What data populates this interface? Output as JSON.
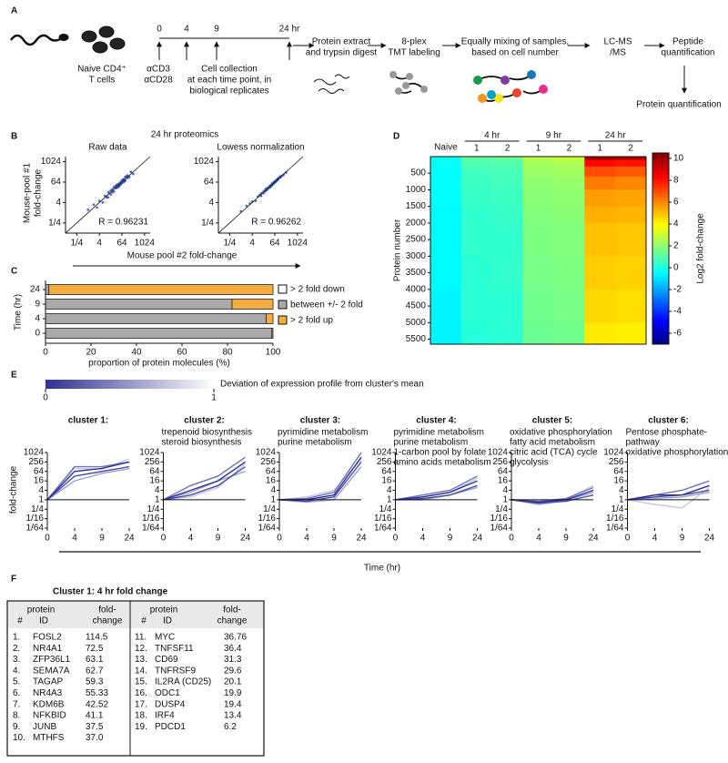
{
  "panels": [
    "A",
    "B",
    "C",
    "D",
    "E",
    "F"
  ],
  "workflow": {
    "cells": [
      "Naive CD4⁺",
      "T cells"
    ],
    "stimulus": [
      "αCD3",
      "αCD28"
    ],
    "timepoints": [
      "0",
      "4",
      "9",
      "24 hr"
    ],
    "collection": [
      "Cell collection",
      "at each time point, in",
      "biological replicates"
    ],
    "digest": [
      "Protein extract",
      "and trypsin digest"
    ],
    "labeling": [
      "8-plex",
      "TMT labeling"
    ],
    "mixing": [
      "Equally mixing of samples,",
      "based on cell number"
    ],
    "lcms": [
      "LC-MS",
      "/MS"
    ],
    "peptide": [
      "Peptide",
      "quantification"
    ],
    "protein": "Protein quantification"
  },
  "chart_data": [
    {
      "type": "scatter",
      "suptitle": "24 hr proteomics",
      "title": "Raw data",
      "annotation": "R = 0.96231",
      "ylabel": [
        "Mouse-pool #1",
        "fold-change"
      ],
      "xlabel": "Mouse pool #2 fold-change",
      "color": "#2b4ba8",
      "log_scale": true,
      "xlim": [
        0.0625,
        2048
      ],
      "ylim": [
        0.0625,
        2048
      ],
      "xticks": [
        {
          "value": 0.25,
          "label": "1/4"
        },
        4,
        64,
        1024
      ],
      "yticks": [
        {
          "value": 0.25,
          "label": "1/4"
        },
        4,
        64,
        1024
      ],
      "x": [
        1,
        2,
        3,
        4,
        6,
        8,
        10,
        12,
        12,
        16,
        16,
        20,
        20,
        24,
        24,
        28,
        32,
        32,
        36,
        40,
        40,
        44,
        48,
        48,
        56,
        56,
        64,
        64,
        72,
        80,
        80,
        88,
        96,
        96,
        112,
        128,
        128,
        160,
        192,
        256
      ],
      "y": [
        1.5,
        3,
        2,
        5,
        4,
        10,
        8,
        16,
        8,
        12,
        20,
        24,
        16,
        18,
        32,
        36,
        28,
        40,
        44,
        32,
        48,
        36,
        56,
        40,
        64,
        48,
        56,
        80,
        88,
        64,
        96,
        72,
        80,
        128,
        140,
        112,
        160,
        128,
        256,
        192
      ]
    },
    {
      "type": "scatter",
      "title": "Lowess normalization",
      "annotation": "R = 0.96262",
      "color": "#2b4ba8",
      "log_scale": true,
      "xlim": [
        0.0625,
        2048
      ],
      "ylim": [
        0.0625,
        2048
      ],
      "xticks": [
        {
          "value": 0.25,
          "label": "1/4"
        },
        4,
        64,
        1024
      ],
      "yticks": [
        {
          "value": 0.25,
          "label": "1/4"
        },
        4,
        64,
        1024
      ],
      "x": [
        1,
        2,
        3,
        4,
        6,
        8,
        10,
        12,
        12,
        16,
        16,
        20,
        20,
        24,
        24,
        28,
        32,
        32,
        36,
        40,
        40,
        44,
        48,
        48,
        56,
        56,
        64,
        64,
        72,
        80,
        80,
        88,
        96,
        96,
        112,
        128,
        128,
        160,
        192,
        256
      ],
      "y": [
        1.2,
        2.5,
        3.5,
        4.5,
        5,
        9,
        11,
        10,
        14,
        14,
        18,
        18,
        24,
        22,
        28,
        26,
        30,
        36,
        32,
        44,
        38,
        40,
        44,
        56,
        52,
        60,
        60,
        72,
        68,
        84,
        76,
        96,
        92,
        104,
        120,
        120,
        140,
        150,
        180,
        240
      ]
    },
    {
      "type": "stacked_bar",
      "orientation": "horizontal",
      "ylabel": "Time (hr)",
      "xlabel": "proportion of protein molecules (%)",
      "categories": [
        "24",
        "9",
        "4",
        "0"
      ],
      "xlim": [
        0,
        100
      ],
      "xticks": [
        0,
        20,
        40,
        60,
        80,
        100
      ],
      "series": [
        {
          "name": "> 2 fold down",
          "color": "#ffffff",
          "values": [
            0,
            0,
            0,
            0
          ]
        },
        {
          "name": "between +/- 2 fold",
          "color": "#a9a9a9",
          "values": [
            1.5,
            82,
            97,
            99.5
          ]
        },
        {
          "name": "> 2 fold up",
          "color": "#f5ae3d",
          "values": [
            98.5,
            18,
            3,
            0.5
          ]
        }
      ]
    },
    {
      "type": "heatmap",
      "ylabel": "Protein number",
      "clabel": "Log2 fold-change",
      "colormap": "jet",
      "groups": [
        {
          "label": "Naive",
          "replicates": [
            null
          ]
        },
        {
          "label": "4 hr",
          "replicates": [
            "1",
            "2"
          ]
        },
        {
          "label": "9 hr",
          "replicates": [
            "1",
            "2"
          ]
        },
        {
          "label": "24 hr",
          "replicates": [
            "1",
            "2"
          ]
        }
      ],
      "ylim": [
        0,
        5650
      ],
      "yticks": [
        500,
        1000,
        1500,
        2000,
        2500,
        3000,
        3500,
        4000,
        4500,
        5000,
        5500
      ],
      "row_edges": [
        0,
        100,
        300,
        600,
        1000,
        1500,
        2000,
        3000,
        4000,
        5000,
        5650
      ],
      "values": [
        [
          -0.3,
          -0.3,
          -0.4,
          -0.4,
          -0.4,
          -0.5,
          -0.5,
          -0.5,
          -0.6,
          -0.6
        ],
        [
          1.2,
          0.9,
          0.7,
          0.6,
          0.5,
          0.4,
          0.4,
          0.3,
          0.3,
          0.2
        ],
        [
          1.4,
          1.0,
          0.8,
          0.7,
          0.6,
          0.5,
          0.4,
          0.4,
          0.3,
          0.3
        ],
        [
          2.8,
          2.4,
          2.2,
          2.0,
          1.9,
          1.8,
          1.7,
          1.6,
          1.5,
          1.4
        ],
        [
          3.0,
          2.6,
          2.3,
          2.1,
          2.0,
          1.9,
          1.8,
          1.7,
          1.6,
          1.5
        ],
        [
          9.8,
          8.2,
          7.0,
          6.2,
          5.6,
          5.3,
          5.0,
          4.8,
          4.6,
          4.3
        ],
        [
          9.6,
          8.0,
          6.8,
          6.0,
          5.5,
          5.2,
          4.9,
          4.7,
          4.5,
          4.2
        ]
      ],
      "clim": [
        -7,
        10.5
      ],
      "cticks": [
        -6,
        -4,
        -2,
        0,
        2,
        4,
        6,
        8,
        10
      ]
    },
    {
      "type": "line",
      "title": "cluster 1:",
      "ylabel": "fold-change",
      "xlabel": "Time (hr)",
      "log_scale": true,
      "colorbar": {
        "label": "Deviation of expression profile from cluster's mean",
        "ticks": [
          0,
          1
        ],
        "colors": [
          "#2e3192",
          "#ffffff"
        ]
      },
      "categories": [
        "0",
        "4",
        "9",
        "24"
      ],
      "ylim": [
        0.015625,
        1024
      ],
      "yticks": [
        {
          "value": 0.015625,
          "label": "1/64"
        },
        {
          "value": 0.0625,
          "label": "1/16"
        },
        {
          "value": 0.25,
          "label": "1/4"
        },
        1,
        4,
        16,
        64,
        256,
        1024
      ],
      "series": [
        {
          "color": "#c5c6e6",
          "values": [
            1,
            100,
            90,
            400
          ]
        },
        {
          "color": "#9c9ed3",
          "values": [
            1,
            16,
            48,
            96
          ]
        },
        {
          "color": "#6e71bd",
          "values": [
            1,
            128,
            128,
            256
          ]
        },
        {
          "color": "#4a4fa8",
          "values": [
            1,
            32,
            64,
            128
          ]
        },
        {
          "color": "#2e3192",
          "values": [
            1,
            64,
            100,
            256
          ]
        }
      ]
    },
    {
      "type": "line",
      "title": "cluster 2:",
      "subtitle": [
        "trepenoid biosynthesis",
        "steroid biosynthesis"
      ],
      "log_scale": true,
      "categories": [
        "0",
        "4",
        "9",
        "24"
      ],
      "ylim": [
        0.015625,
        1024
      ],
      "yticks": [
        {
          "value": 0.015625,
          "label": "1/64"
        },
        {
          "value": 0.0625,
          "label": "1/16"
        },
        {
          "value": 0.25,
          "label": "1/4"
        },
        1,
        4,
        16,
        64,
        256,
        1024
      ],
      "series": [
        {
          "color": "#c5c6e6",
          "values": [
            1,
            1.5,
            6,
            200
          ]
        },
        {
          "color": "#9c9ed3",
          "values": [
            1,
            3,
            16,
            64
          ]
        },
        {
          "color": "#6e71bd",
          "values": [
            1,
            8,
            32,
            512
          ]
        },
        {
          "color": "#4a4fa8",
          "values": [
            1,
            2,
            8,
            128
          ]
        },
        {
          "color": "#2e3192",
          "values": [
            1,
            4,
            16,
            256
          ]
        }
      ]
    },
    {
      "type": "line",
      "title": "cluster 3:",
      "subtitle": [
        "pyrimidine metabolism",
        "purine metabolism"
      ],
      "log_scale": true,
      "categories": [
        "0",
        "4",
        "9",
        "24"
      ],
      "ylim": [
        0.015625,
        1024
      ],
      "yticks": [
        {
          "value": 0.015625,
          "label": "1/64"
        },
        {
          "value": 0.0625,
          "label": "1/16"
        },
        {
          "value": 0.25,
          "label": "1/4"
        },
        1,
        4,
        16,
        64,
        256,
        1024
      ],
      "series": [
        {
          "color": "#c5c6e6",
          "values": [
            1,
            1.5,
            4,
            400
          ]
        },
        {
          "color": "#9c9ed3",
          "values": [
            1,
            0.7,
            1,
            128
          ]
        },
        {
          "color": "#6e71bd",
          "values": [
            1,
            1.2,
            3,
            1024
          ]
        },
        {
          "color": "#4a4fa8",
          "values": [
            1,
            0.8,
            1.5,
            256
          ]
        },
        {
          "color": "#2e3192",
          "values": [
            1,
            1,
            2,
            512
          ]
        }
      ]
    },
    {
      "type": "line",
      "title": "cluster 4:",
      "subtitle": [
        "pyrimidine metabolism",
        "purine metabolism",
        "1-carbon pool by folate",
        "amino acids metabolism"
      ],
      "log_scale": true,
      "categories": [
        "0",
        "4",
        "9",
        "24"
      ],
      "ylim": [
        0.015625,
        1024
      ],
      "yticks": [
        {
          "value": 0.015625,
          "label": "1/64"
        },
        {
          "value": 0.0625,
          "label": "1/16"
        },
        {
          "value": 0.25,
          "label": "1/4"
        },
        1,
        4,
        16,
        64,
        256,
        1024
      ],
      "series": [
        {
          "color": "#c5c6e6",
          "values": [
            1,
            1.5,
            3,
            24
          ]
        },
        {
          "color": "#9c9ed3",
          "values": [
            1,
            1,
            2,
            6
          ]
        },
        {
          "color": "#6e71bd",
          "values": [
            1,
            2,
            4,
            32
          ]
        },
        {
          "color": "#4a4fa8",
          "values": [
            1,
            1.2,
            2,
            8
          ]
        },
        {
          "color": "#2e3192",
          "values": [
            1,
            1.5,
            3,
            16
          ]
        }
      ]
    },
    {
      "type": "line",
      "title": "cluster 5:",
      "subtitle": [
        "oxidative phosphorylation",
        "fatty acid metabolism",
        "citric acid (TCA) cycle",
        "glycolysis"
      ],
      "log_scale": true,
      "categories": [
        "0",
        "4",
        "9",
        "24"
      ],
      "ylim": [
        0.015625,
        1024
      ],
      "yticks": [
        {
          "value": 0.015625,
          "label": "1/64"
        },
        {
          "value": 0.0625,
          "label": "1/16"
        },
        {
          "value": 0.25,
          "label": "1/4"
        },
        1,
        4,
        16,
        64,
        256,
        1024
      ],
      "series": [
        {
          "color": "#c5c6e6",
          "values": [
            1,
            0.7,
            1.1,
            8
          ]
        },
        {
          "color": "#9c9ed3",
          "values": [
            1,
            0.5,
            0.9,
            3
          ]
        },
        {
          "color": "#6e71bd",
          "values": [
            1,
            0.8,
            1.2,
            6
          ]
        },
        {
          "color": "#4a4fa8",
          "values": [
            1,
            0.6,
            0.8,
            2
          ]
        },
        {
          "color": "#2e3192",
          "values": [
            1,
            0.7,
            1,
            4
          ]
        }
      ]
    },
    {
      "type": "line",
      "title": "cluster 6:",
      "subtitle": [
        "Pentose phosphate-",
        "pathway",
        "oxidative phosphorylation"
      ],
      "log_scale": true,
      "categories": [
        "0",
        "4",
        "9",
        "24"
      ],
      "ylim": [
        0.015625,
        1024
      ],
      "yticks": [
        {
          "value": 0.015625,
          "label": "1/64"
        },
        {
          "value": 0.0625,
          "label": "1/16"
        },
        {
          "value": 0.25,
          "label": "1/4"
        },
        1,
        4,
        16,
        64,
        256,
        1024
      ],
      "series": [
        {
          "color": "#c5c6e6",
          "values": [
            1,
            0.5,
            0.3,
            6
          ]
        },
        {
          "color": "#9c9ed3",
          "values": [
            1,
            1.2,
            1.5,
            3
          ]
        },
        {
          "color": "#6e71bd",
          "values": [
            1,
            2,
            4,
            16
          ]
        },
        {
          "color": "#4a4fa8",
          "values": [
            1,
            1.5,
            2,
            4
          ]
        },
        {
          "color": "#2e3192",
          "values": [
            1,
            2,
            2,
            8
          ]
        }
      ]
    }
  ],
  "table": {
    "title": "Cluster 1: 4 hr fold change",
    "header": {
      "protein": "protein",
      "number": "#",
      "id": "ID",
      "fold_change": [
        "fold-",
        "change"
      ]
    },
    "rows": [
      [
        "1.",
        "FOSL2",
        "114.5"
      ],
      [
        "2.",
        "NR4A1",
        "72.5"
      ],
      [
        "3.",
        "ZFP36L1",
        "63.1"
      ],
      [
        "4.",
        "SEMA7A",
        "62.7"
      ],
      [
        "5.",
        "TAGAP",
        "59.3"
      ],
      [
        "6.",
        "NR4A3",
        "55.33"
      ],
      [
        "7.",
        "KDM6B",
        "42.52"
      ],
      [
        "8.",
        "NFKBID",
        "41.1"
      ],
      [
        "9.",
        "JUNB",
        "37.5"
      ],
      [
        "10.",
        "MTHFS",
        "37.0"
      ],
      [
        "11.",
        "MYC",
        "36.76"
      ],
      [
        "12.",
        "TNFSF11",
        "36.4"
      ],
      [
        "13.",
        "CD69",
        "31.3"
      ],
      [
        "14.",
        "TNFRSF9",
        "29.6"
      ],
      [
        "15.",
        "IL2RA (CD25)",
        "20.1"
      ],
      [
        "16.",
        "ODC1",
        "19.9"
      ],
      [
        "17.",
        "DUSP4",
        "19.4"
      ],
      [
        "18.",
        "IRF4",
        "13.4"
      ],
      [
        "19.",
        "PDCD1",
        "6.2"
      ]
    ]
  }
}
